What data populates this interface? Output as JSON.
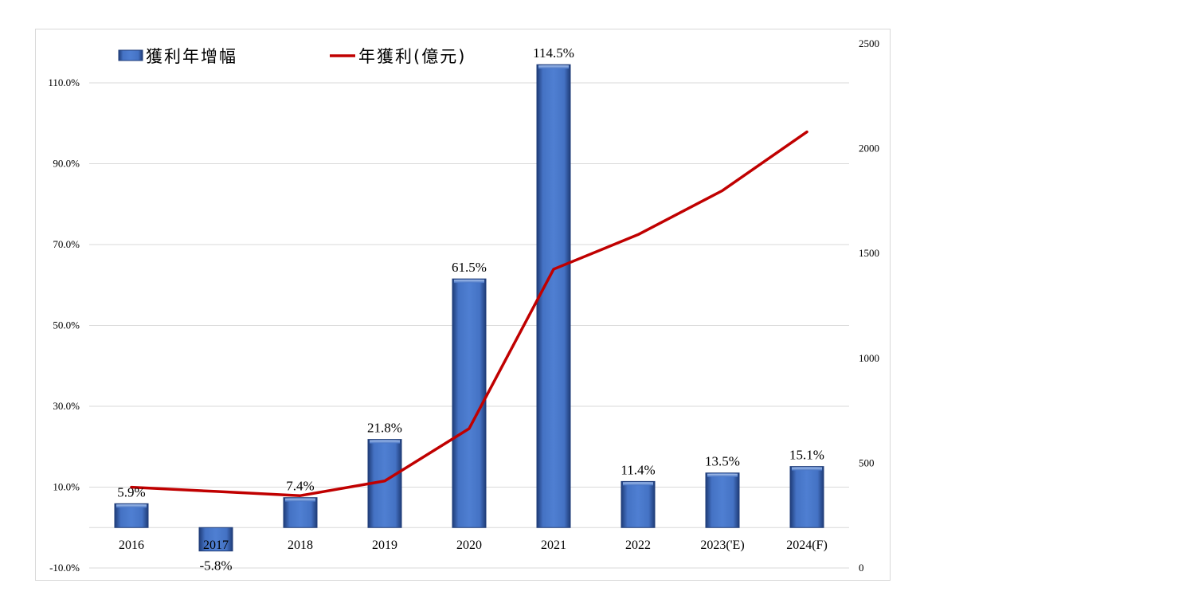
{
  "chart_data": {
    "type": "bar",
    "categories": [
      "2016",
      "2017",
      "2018",
      "2019",
      "2020",
      "2021",
      "2022",
      "2023('E)",
      "2024(F)"
    ],
    "series": [
      {
        "name": "獲利年增幅",
        "type": "bar",
        "axis": "left",
        "values": [
          5.9,
          -5.8,
          7.4,
          21.8,
          61.5,
          114.5,
          11.4,
          13.5,
          15.1
        ],
        "labels": [
          "5.9%",
          "-5.8%",
          "7.4%",
          "21.8%",
          "61.5%",
          "114.5%",
          "11.4%",
          "13.5%",
          "15.1%"
        ]
      },
      {
        "name": "年獲利(億元)",
        "type": "line",
        "axis": "right",
        "values": [
          385,
          365,
          345,
          415,
          665,
          1425,
          1590,
          1800,
          2080
        ]
      }
    ],
    "y_left": {
      "min": -10,
      "max": 110,
      "ticks": [
        -10,
        10,
        30,
        50,
        70,
        90,
        110
      ],
      "tick_labels": [
        "-10.0%",
        "10.0%",
        "30.0%",
        "50.0%",
        "70.0%",
        "90.0%",
        "110.0%"
      ]
    },
    "y_right": {
      "min": 0,
      "max": 2500,
      "ticks": [
        0,
        500,
        1000,
        1500,
        2000,
        2500
      ],
      "tick_labels": [
        "0",
        "500",
        "1000",
        "1500",
        "2000",
        "2500"
      ]
    },
    "grid": true,
    "legend": "top-left",
    "colors": {
      "bar": "#4472c4",
      "bar_dark": "#1f3c78",
      "line": "#c00000",
      "grid": "#d9d9d9"
    }
  }
}
